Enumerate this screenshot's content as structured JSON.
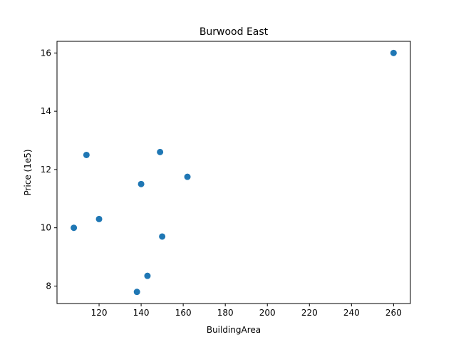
{
  "chart_data": {
    "type": "scatter",
    "title": "Burwood East",
    "xlabel": "BuildingArea",
    "ylabel": "Price (1e5)",
    "xlim": [
      100,
      268
    ],
    "ylim": [
      7.4,
      16.4
    ],
    "xticks": [
      120,
      140,
      160,
      180,
      200,
      220,
      240,
      260
    ],
    "yticks": [
      8,
      10,
      12,
      14,
      16
    ],
    "grid": false,
    "color": "#1f77b4",
    "points": [
      {
        "x": 108,
        "y": 10.0
      },
      {
        "x": 114,
        "y": 12.5
      },
      {
        "x": 120,
        "y": 10.3
      },
      {
        "x": 138,
        "y": 7.8
      },
      {
        "x": 140,
        "y": 11.5
      },
      {
        "x": 143,
        "y": 8.35
      },
      {
        "x": 149,
        "y": 12.6
      },
      {
        "x": 150,
        "y": 9.7
      },
      {
        "x": 162,
        "y": 11.75
      },
      {
        "x": 260,
        "y": 16.0
      }
    ]
  }
}
